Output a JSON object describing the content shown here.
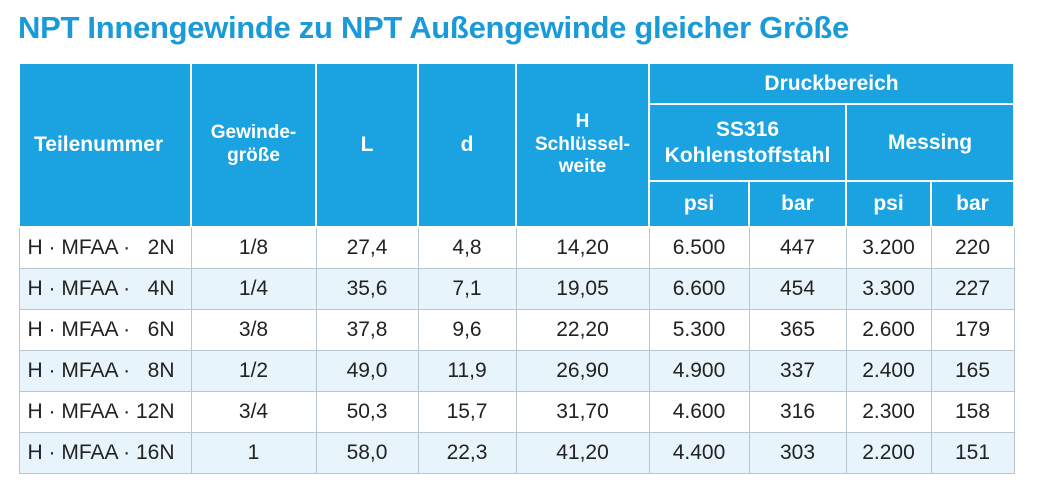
{
  "title": "NPT Innengewinde zu NPT Außengewinde gleicher Größe",
  "table": {
    "header": {
      "part": "Teilenummer",
      "thread": "Gewinde-\ngröße",
      "L": "L",
      "d": "d",
      "H": "H\nSchlüssel-\nweite",
      "pressure_range": "Druckbereich",
      "ss316": "SS316\nKohlenstoffstahl",
      "messing": "Messing",
      "units": [
        "psi",
        "bar",
        "psi",
        "bar"
      ]
    },
    "rows": [
      [
        "H · MFAA ·   2N",
        "1/8",
        "27,4",
        "4,8",
        "14,20",
        "6.500",
        "447",
        "3.200",
        "220"
      ],
      [
        "H · MFAA ·   4N",
        "1/4",
        "35,6",
        "7,1",
        "19,05",
        "6.600",
        "454",
        "3.300",
        "227"
      ],
      [
        "H · MFAA ·   6N",
        "3/8",
        "37,8",
        "9,6",
        "22,20",
        "5.300",
        "365",
        "2.600",
        "179"
      ],
      [
        "H · MFAA ·   8N",
        "1/2",
        "49,0",
        "11,9",
        "26,90",
        "4.900",
        "337",
        "2.400",
        "165"
      ],
      [
        "H · MFAA · 12N",
        "3/4",
        "50,3",
        "15,7",
        "31,70",
        "4.600",
        "316",
        "2.300",
        "158"
      ],
      [
        "H · MFAA · 16N",
        "1",
        "58,0",
        "22,3",
        "41,20",
        "4.400",
        "303",
        "2.200",
        "151"
      ]
    ]
  }
}
